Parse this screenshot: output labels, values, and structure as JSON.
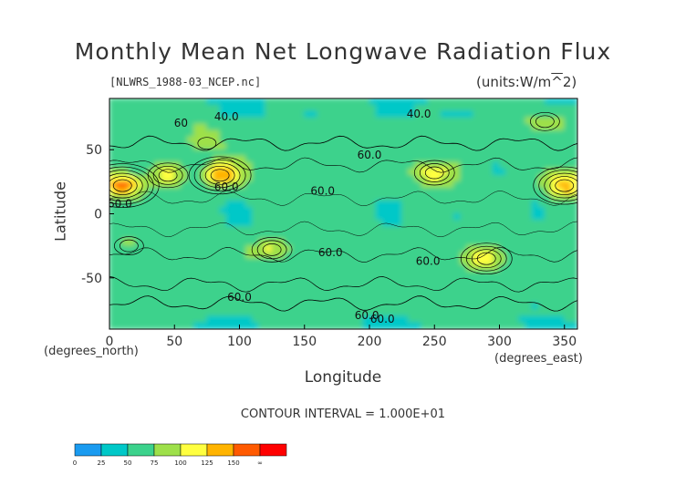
{
  "title": "Monthly Mean Net Longwave Radiation Flux",
  "file_label": "[NLWRS_1988-03_NCEP.nc]",
  "units_label": "(units:W/m^2)",
  "x_unit_left": "(degrees_north)",
  "x_unit_right": "(degrees_east)",
  "contour_note": "CONTOUR INTERVAL = 1.000E+01",
  "colorbar": {
    "ticks": [
      "0",
      "25",
      "50",
      "75",
      "100",
      "125",
      "150",
      "∞"
    ],
    "colors": [
      "#1a9bf0",
      "#00c8c8",
      "#3cd28c",
      "#9ee04a",
      "#ffff40",
      "#ffb400",
      "#ff5a00",
      "#ff0000"
    ]
  },
  "chart_data": {
    "type": "heatmap",
    "title": "Monthly Mean Net Longwave Radiation Flux",
    "xlabel": "Longitude",
    "ylabel": "Latitude",
    "xlim": [
      0,
      360
    ],
    "ylim": [
      -90,
      90
    ],
    "x_ticks": [
      0,
      50,
      100,
      150,
      200,
      250,
      300,
      350
    ],
    "y_ticks": [
      50,
      0,
      -50
    ],
    "contour_interval": 10,
    "contour_labels": [
      {
        "lon": 90,
        "lat": 73,
        "text": "40.0"
      },
      {
        "lon": 238,
        "lat": 75,
        "text": "40.0"
      },
      {
        "lon": 200,
        "lat": 43,
        "text": "60.0"
      },
      {
        "lon": 164,
        "lat": 15,
        "text": "60.0"
      },
      {
        "lon": 90,
        "lat": 18,
        "text": "60.0"
      },
      {
        "lon": 8,
        "lat": 5,
        "text": "60.0"
      },
      {
        "lon": 170,
        "lat": -33,
        "text": "60.0"
      },
      {
        "lon": 245,
        "lat": -40,
        "text": "60.0"
      },
      {
        "lon": 100,
        "lat": -68,
        "text": "60.0"
      },
      {
        "lon": 198,
        "lat": -82,
        "text": "60.0"
      },
      {
        "lon": 210,
        "lat": -85,
        "text": "60.0"
      },
      {
        "lon": 55,
        "lat": 68,
        "text": "60"
      }
    ],
    "value_bins": [
      0,
      25,
      50,
      75,
      100,
      125,
      150
    ],
    "hotspots": [
      {
        "lon": 10,
        "lat": 22,
        "value": 160
      },
      {
        "lon": 45,
        "lat": 30,
        "value": 110
      },
      {
        "lon": 85,
        "lat": 30,
        "value": 150
      },
      {
        "lon": 75,
        "lat": 55,
        "value": 85
      },
      {
        "lon": 125,
        "lat": -28,
        "value": 115
      },
      {
        "lon": 250,
        "lat": 32,
        "value": 120
      },
      {
        "lon": 290,
        "lat": -35,
        "value": 125
      },
      {
        "lon": 350,
        "lat": 22,
        "value": 150
      },
      {
        "lon": 335,
        "lat": 72,
        "value": 100
      },
      {
        "lon": 15,
        "lat": -25,
        "value": 90
      }
    ]
  }
}
